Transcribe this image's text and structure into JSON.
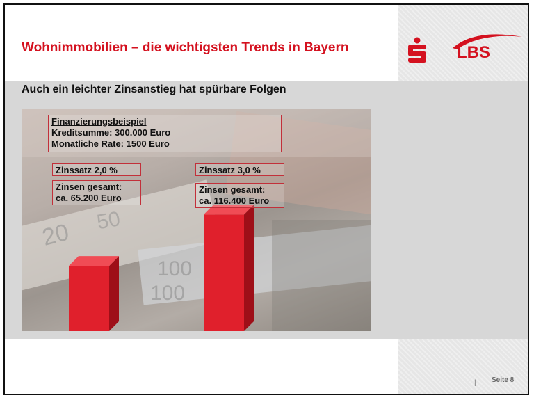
{
  "title": "Wohnimmobilien – die wichtigsten Trends in Bayern",
  "subtitle": "Auch ein leichter Zinsanstieg hat spürbare Folgen",
  "logos": {
    "sparkasse_icon": "sparkasse-s-icon",
    "lbs_text": "LBS",
    "brand_color": "#d4111f"
  },
  "example": {
    "heading": "Finanzierungsbeispiel",
    "line1": "Kreditsumme:  300.000 Euro",
    "line2": "Monatliche Rate: 1500 Euro"
  },
  "scenario_a": {
    "rate_label": "Zinssatz 2,0 %",
    "total_label": "Zinsen gesamt:",
    "total_value": "ca.  65.200 Euro"
  },
  "scenario_b": {
    "rate_label": "Zinssatz 3,0 %",
    "total_label": "Zinsen gesamt:",
    "total_value": "ca.  116.400 Euro"
  },
  "chart_data": {
    "type": "bar",
    "categories": [
      "Zinssatz 2,0 %",
      "Zinssatz 3,0 %"
    ],
    "values": [
      65200,
      116400
    ],
    "ylim": [
      0,
      125000
    ],
    "bar_color": "#e0202c"
  },
  "footer": {
    "separator": "|",
    "page": "Seite 8"
  }
}
